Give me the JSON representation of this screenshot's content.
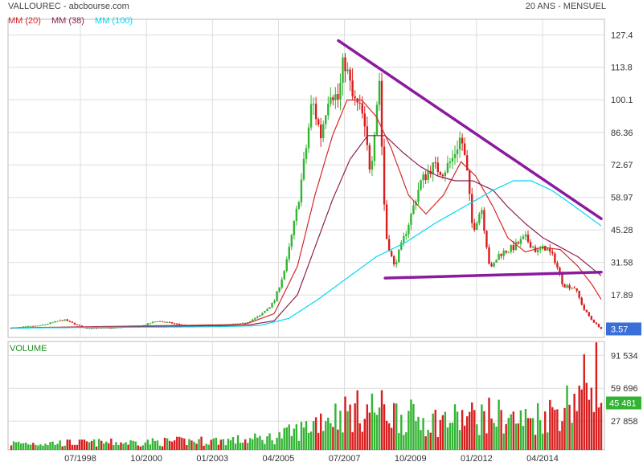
{
  "header": {
    "title": "VALLOUREC - abcbourse.com",
    "period": "20 ANS - MENSUEL"
  },
  "legend": [
    {
      "label": "MM (20)",
      "color": "#d62728"
    },
    {
      "label": "MM (38)",
      "color": "#8b2252"
    },
    {
      "label": "MM (100)",
      "color": "#00d8f0"
    }
  ],
  "volume_label": "VOLUME",
  "colors": {
    "up": "#33b433",
    "down": "#d81e1e",
    "trendline": "#8b1a9e",
    "grid": "#dddddd",
    "last_price_badge": "#3b6fd8",
    "last_volume_badge": "#33b433"
  },
  "chart_data": [
    {
      "type": "candlestick",
      "name": "price",
      "ylim": [
        0,
        134
      ],
      "y_ticks": [
        "127.4",
        "113.8",
        "100.1",
        "86.36",
        "72.67",
        "58.97",
        "45.28",
        "31.58",
        "17.89"
      ],
      "y_tick_values": [
        127.4,
        113.8,
        100.1,
        86.36,
        72.67,
        58.97,
        45.28,
        31.58,
        17.89
      ],
      "x_labels": [
        "07/1998",
        "10/2000",
        "01/2003",
        "04/2005",
        "07/2007",
        "10/2009",
        "01/2012",
        "04/2014"
      ],
      "x_range": [
        1996.0,
        2016.2
      ],
      "last_price": "3.57",
      "close_anchors": [
        [
          1996.0,
          4.0
        ],
        [
          1997.0,
          5.0
        ],
        [
          1997.8,
          7.5
        ],
        [
          1998.5,
          4.0
        ],
        [
          1999.5,
          4.0
        ],
        [
          2000.5,
          5.0
        ],
        [
          2001.0,
          7.0
        ],
        [
          2002.0,
          5.0
        ],
        [
          2003.0,
          5.0
        ],
        [
          2004.0,
          6.0
        ],
        [
          2004.5,
          9.0
        ],
        [
          2005.0,
          15.0
        ],
        [
          2005.4,
          30.0
        ],
        [
          2005.8,
          55.0
        ],
        [
          2006.1,
          80.0
        ],
        [
          2006.3,
          100.0
        ],
        [
          2006.6,
          85.0
        ],
        [
          2006.9,
          105.0
        ],
        [
          2007.2,
          100.0
        ],
        [
          2007.4,
          118.0
        ],
        [
          2007.7,
          100.0
        ],
        [
          2008.0,
          95.0
        ],
        [
          2008.3,
          70.0
        ],
        [
          2008.6,
          110.0
        ],
        [
          2008.75,
          60.0
        ],
        [
          2008.85,
          42.0
        ],
        [
          2009.1,
          30.0
        ],
        [
          2009.4,
          40.0
        ],
        [
          2009.7,
          52.0
        ],
        [
          2010.0,
          65.0
        ],
        [
          2010.4,
          72.0
        ],
        [
          2010.8,
          70.0
        ],
        [
          2011.1,
          75.0
        ],
        [
          2011.4,
          85.0
        ],
        [
          2011.6,
          70.0
        ],
        [
          2011.8,
          45.0
        ],
        [
          2012.1,
          55.0
        ],
        [
          2012.4,
          28.0
        ],
        [
          2012.7,
          35.0
        ],
        [
          2013.2,
          38.0
        ],
        [
          2013.6,
          42.0
        ],
        [
          2014.0,
          36.0
        ],
        [
          2014.3,
          38.0
        ],
        [
          2014.6,
          33.0
        ],
        [
          2014.9,
          22.0
        ],
        [
          2015.3,
          21.0
        ],
        [
          2015.6,
          12.0
        ],
        [
          2015.9,
          7.0
        ],
        [
          2016.2,
          3.57
        ]
      ],
      "series": [
        {
          "name": "MM (20)",
          "color": "#d62728",
          "anchors": [
            [
              1996.0,
              4.0
            ],
            [
              2004.0,
              5.5
            ],
            [
              2005.0,
              10.0
            ],
            [
              2005.8,
              30.0
            ],
            [
              2006.4,
              60.0
            ],
            [
              2007.0,
              85.0
            ],
            [
              2007.5,
              100.0
            ],
            [
              2008.0,
              100.0
            ],
            [
              2008.5,
              93.0
            ],
            [
              2009.0,
              80.0
            ],
            [
              2009.6,
              60.0
            ],
            [
              2010.2,
              52.0
            ],
            [
              2010.8,
              60.0
            ],
            [
              2011.4,
              74.0
            ],
            [
              2011.9,
              68.0
            ],
            [
              2012.5,
              55.0
            ],
            [
              2013.0,
              42.0
            ],
            [
              2013.6,
              36.0
            ],
            [
              2014.2,
              38.0
            ],
            [
              2014.8,
              37.0
            ],
            [
              2015.4,
              30.0
            ],
            [
              2015.9,
              22.0
            ],
            [
              2016.2,
              16.0
            ]
          ]
        },
        {
          "name": "MM (38)",
          "color": "#8b2252",
          "anchors": [
            [
              1996.0,
              4.0
            ],
            [
              2004.0,
              5.0
            ],
            [
              2005.0,
              7.0
            ],
            [
              2005.8,
              18.0
            ],
            [
              2006.4,
              38.0
            ],
            [
              2007.0,
              58.0
            ],
            [
              2007.6,
              75.0
            ],
            [
              2008.2,
              85.0
            ],
            [
              2008.8,
              85.0
            ],
            [
              2009.4,
              78.0
            ],
            [
              2010.0,
              72.0
            ],
            [
              2010.6,
              68.0
            ],
            [
              2011.2,
              66.0
            ],
            [
              2011.8,
              66.0
            ],
            [
              2012.5,
              62.0
            ],
            [
              2013.0,
              55.0
            ],
            [
              2013.6,
              48.0
            ],
            [
              2014.2,
              42.0
            ],
            [
              2014.8,
              38.0
            ],
            [
              2015.4,
              34.0
            ],
            [
              2016.2,
              26.0
            ]
          ]
        },
        {
          "name": "MM (100)",
          "color": "#00d8f0",
          "anchors": [
            [
              1996.0,
              4.0
            ],
            [
              2003.0,
              4.5
            ],
            [
              2004.5,
              5.0
            ],
            [
              2005.5,
              8.0
            ],
            [
              2006.5,
              16.0
            ],
            [
              2007.5,
              25.0
            ],
            [
              2008.5,
              34.0
            ],
            [
              2009.5,
              40.0
            ],
            [
              2010.5,
              48.0
            ],
            [
              2011.5,
              55.0
            ],
            [
              2012.5,
              62.0
            ],
            [
              2013.2,
              66.0
            ],
            [
              2013.8,
              66.0
            ],
            [
              2014.5,
              62.0
            ],
            [
              2015.2,
              56.0
            ],
            [
              2016.2,
              47.0
            ]
          ]
        }
      ],
      "trendlines": [
        {
          "from": [
            2007.2,
            125.0
          ],
          "to": [
            2016.2,
            50.0
          ]
        },
        {
          "from": [
            2008.8,
            25.0
          ],
          "to": [
            2016.2,
            27.5
          ]
        }
      ]
    },
    {
      "type": "bar",
      "name": "volume",
      "ylim": [
        0,
        105000
      ],
      "y_ticks": [
        "91 534",
        "59 696",
        "27 858"
      ],
      "y_tick_values": [
        91534,
        59696,
        27858
      ],
      "last_volume": "45 481",
      "anchors": [
        [
          1996.0,
          8000
        ],
        [
          2000.0,
          9000
        ],
        [
          2004.0,
          12000
        ],
        [
          2005.0,
          15000
        ],
        [
          2006.0,
          25000
        ],
        [
          2006.7,
          40000
        ],
        [
          2007.5,
          45000
        ],
        [
          2008.5,
          50000
        ],
        [
          2009.5,
          40000
        ],
        [
          2010.5,
          35000
        ],
        [
          2011.5,
          38000
        ],
        [
          2012.5,
          42000
        ],
        [
          2013.5,
          35000
        ],
        [
          2014.5,
          45000
        ],
        [
          2015.0,
          55000
        ],
        [
          2015.5,
          70000
        ],
        [
          2015.9,
          92000
        ],
        [
          2016.1,
          96000
        ],
        [
          2016.2,
          45481
        ]
      ]
    }
  ]
}
